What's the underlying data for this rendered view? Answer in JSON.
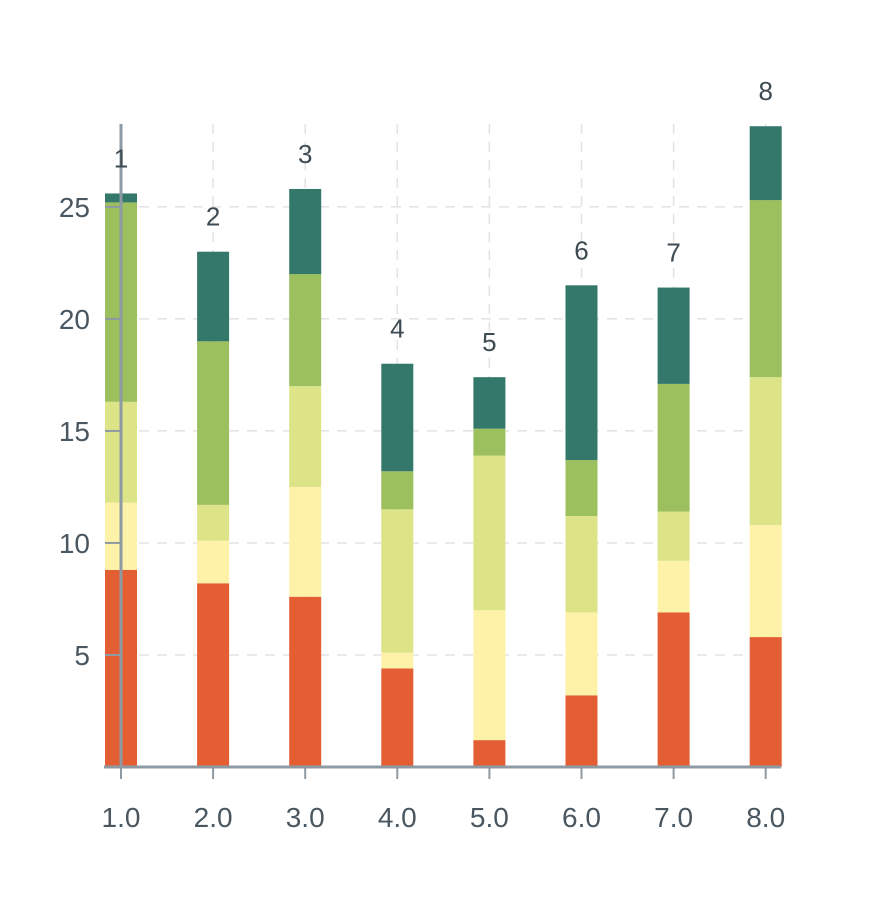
{
  "chart_data": {
    "type": "bar",
    "stacked": true,
    "title": "",
    "xlabel": "",
    "ylabel": "",
    "x": [
      1,
      2,
      3,
      4,
      5,
      6,
      7,
      8
    ],
    "x_tick_labels": [
      "1.0",
      "2.0",
      "3.0",
      "4.0",
      "5.0",
      "6.0",
      "7.0",
      "8.0"
    ],
    "y_ticks": [
      5,
      10,
      15,
      20,
      25
    ],
    "y_tick_labels": [
      "5",
      "10",
      "15",
      "20",
      "25"
    ],
    "ylim": [
      0,
      28.7
    ],
    "bar_labels": [
      "1",
      "2",
      "3",
      "4",
      "5",
      "6",
      "7",
      "8"
    ],
    "grid": true,
    "series": [
      {
        "color": "#e35f33",
        "values": [
          8.8,
          8.2,
          7.6,
          4.4,
          1.2,
          3.2,
          6.9,
          5.8
        ]
      },
      {
        "color": "#fdf2a7",
        "values": [
          3.0,
          1.9,
          4.9,
          0.7,
          5.8,
          3.7,
          2.3,
          5.0
        ]
      },
      {
        "color": "#dde488",
        "values": [
          4.5,
          1.6,
          4.5,
          6.4,
          6.9,
          4.3,
          2.2,
          6.6
        ]
      },
      {
        "color": "#9bc05d",
        "values": [
          8.9,
          7.3,
          5.0,
          1.7,
          1.2,
          2.5,
          5.7,
          7.9
        ]
      },
      {
        "color": "#33786a",
        "values": [
          0.4,
          4.0,
          3.8,
          4.8,
          2.3,
          7.8,
          4.3,
          3.3
        ]
      }
    ]
  }
}
